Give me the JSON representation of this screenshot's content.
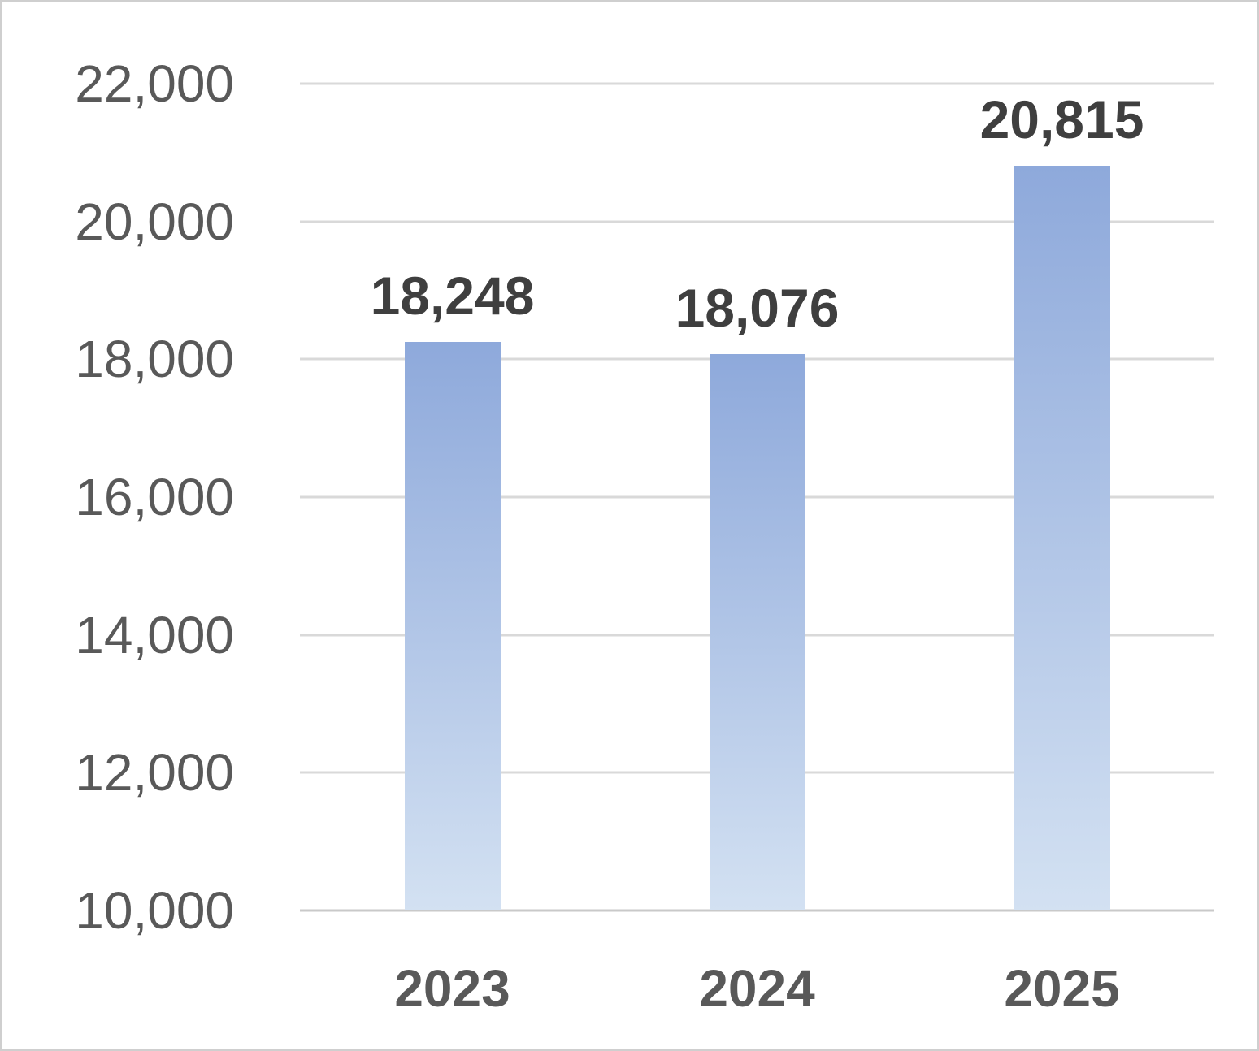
{
  "chart_data": {
    "type": "bar",
    "title": "",
    "xlabel": "",
    "ylabel": "",
    "categories": [
      "2023",
      "2024",
      "2025"
    ],
    "values": [
      18248,
      18076,
      20815
    ],
    "value_labels": [
      "18,248",
      "18,076",
      "20,815"
    ],
    "ylim": [
      10000,
      22000
    ],
    "ytick_interval": 2000,
    "ytick_labels": [
      "22,000",
      "20,000",
      "18,000",
      "16,000",
      "14,000",
      "12,000",
      "10,000"
    ],
    "grid": "horizontal",
    "legend": "none",
    "data_labels": "above-bars",
    "colors": {
      "bar_gradient_top": "#8EA9DB",
      "bar_gradient_bottom": "#D3E1F2",
      "gridline": "#D9D9D9",
      "axis_line": "#C9C9C9",
      "ytick_color": "#595959",
      "xtick_color": "#595959",
      "data_label_color": "#3F3F3F",
      "background": "#FFFFFF",
      "border": "#CCCCCC"
    }
  }
}
